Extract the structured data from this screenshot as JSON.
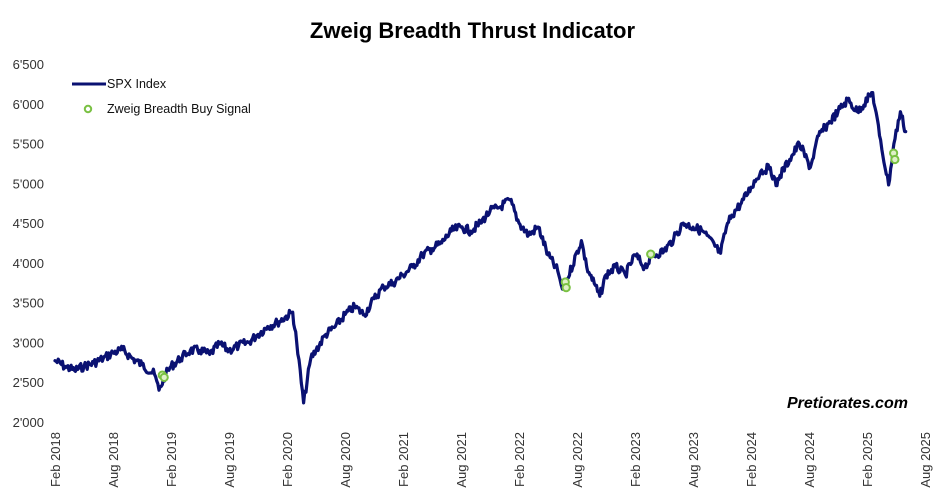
{
  "chart_data": {
    "type": "line",
    "title": "Zweig Breadth Thrust Indicator",
    "xlabel": "",
    "ylabel": "",
    "ylim": [
      2000,
      6500
    ],
    "yticks": [
      "2'000",
      "2'500",
      "3'000",
      "3'500",
      "4'000",
      "4'500",
      "5'000",
      "5'500",
      "6'000",
      "6'500"
    ],
    "ytick_values": [
      2000,
      2500,
      3000,
      3500,
      4000,
      4500,
      5000,
      5500,
      6000,
      6500
    ],
    "xlim": [
      "2018-02",
      "2025-08"
    ],
    "xticks": [
      "Feb 2018",
      "Aug 2018",
      "Feb 2019",
      "Aug 2019",
      "Feb 2020",
      "Aug 2020",
      "Feb 2021",
      "Aug 2021",
      "Feb 2022",
      "Aug 2022",
      "Feb 2023",
      "Aug 2023",
      "Feb 2024",
      "Aug 2024",
      "Feb 2025",
      "Aug 2025"
    ],
    "legend_position": "top-left",
    "grid": false,
    "series": [
      {
        "name": "SPX Index",
        "color": "#0a1172",
        "points": [
          [
            "2018-02-01",
            2770
          ],
          [
            "2018-03-01",
            2700
          ],
          [
            "2018-04-01",
            2650
          ],
          [
            "2018-05-01",
            2700
          ],
          [
            "2018-06-01",
            2740
          ],
          [
            "2018-07-01",
            2800
          ],
          [
            "2018-08-01",
            2870
          ],
          [
            "2018-09-01",
            2910
          ],
          [
            "2018-10-01",
            2800
          ],
          [
            "2018-11-01",
            2720
          ],
          [
            "2018-12-10",
            2600
          ],
          [
            "2018-12-24",
            2400
          ],
          [
            "2019-01-15",
            2600
          ],
          [
            "2019-02-01",
            2700
          ],
          [
            "2019-03-01",
            2800
          ],
          [
            "2019-04-01",
            2900
          ],
          [
            "2019-05-01",
            2900
          ],
          [
            "2019-06-01",
            2850
          ],
          [
            "2019-07-01",
            2980
          ],
          [
            "2019-08-01",
            2900
          ],
          [
            "2019-09-01",
            2960
          ],
          [
            "2019-10-01",
            3000
          ],
          [
            "2019-11-01",
            3100
          ],
          [
            "2019-12-01",
            3200
          ],
          [
            "2020-01-01",
            3250
          ],
          [
            "2020-02-19",
            3380
          ],
          [
            "2020-03-01",
            3000
          ],
          [
            "2020-03-23",
            2240
          ],
          [
            "2020-04-15",
            2800
          ],
          [
            "2020-05-01",
            2900
          ],
          [
            "2020-06-01",
            3100
          ],
          [
            "2020-07-01",
            3200
          ],
          [
            "2020-08-01",
            3350
          ],
          [
            "2020-09-01",
            3450
          ],
          [
            "2020-10-01",
            3350
          ],
          [
            "2020-11-01",
            3550
          ],
          [
            "2020-12-01",
            3700
          ],
          [
            "2021-01-01",
            3750
          ],
          [
            "2021-02-01",
            3850
          ],
          [
            "2021-03-01",
            3950
          ],
          [
            "2021-04-01",
            4100
          ],
          [
            "2021-05-01",
            4180
          ],
          [
            "2021-06-01",
            4250
          ],
          [
            "2021-07-01",
            4400
          ],
          [
            "2021-08-01",
            4450
          ],
          [
            "2021-09-01",
            4400
          ],
          [
            "2021-10-01",
            4500
          ],
          [
            "2021-11-01",
            4650
          ],
          [
            "2021-12-01",
            4700
          ],
          [
            "2022-01-03",
            4790
          ],
          [
            "2022-02-01",
            4500
          ],
          [
            "2022-03-01",
            4350
          ],
          [
            "2022-04-01",
            4450
          ],
          [
            "2022-05-01",
            4100
          ],
          [
            "2022-06-01",
            3900
          ],
          [
            "2022-06-16",
            3670
          ],
          [
            "2022-07-01",
            3800
          ],
          [
            "2022-08-15",
            4280
          ],
          [
            "2022-09-01",
            3950
          ],
          [
            "2022-10-12",
            3580
          ],
          [
            "2022-11-01",
            3850
          ],
          [
            "2022-12-01",
            3950
          ],
          [
            "2023-01-01",
            3850
          ],
          [
            "2023-02-01",
            4100
          ],
          [
            "2023-03-01",
            3950
          ],
          [
            "2023-04-01",
            4100
          ],
          [
            "2023-05-01",
            4150
          ],
          [
            "2023-06-01",
            4300
          ],
          [
            "2023-07-01",
            4500
          ],
          [
            "2023-08-01",
            4450
          ],
          [
            "2023-09-01",
            4400
          ],
          [
            "2023-10-27",
            4120
          ],
          [
            "2023-11-15",
            4450
          ],
          [
            "2023-12-01",
            4600
          ],
          [
            "2024-01-01",
            4750
          ],
          [
            "2024-02-01",
            4950
          ],
          [
            "2024-03-01",
            5150
          ],
          [
            "2024-04-01",
            5200
          ],
          [
            "2024-04-19",
            4970
          ],
          [
            "2024-05-01",
            5100
          ],
          [
            "2024-06-01",
            5300
          ],
          [
            "2024-07-01",
            5500
          ],
          [
            "2024-08-05",
            5200
          ],
          [
            "2024-09-01",
            5600
          ],
          [
            "2024-10-01",
            5750
          ],
          [
            "2024-11-01",
            5900
          ],
          [
            "2024-12-01",
            6050
          ],
          [
            "2025-01-01",
            5900
          ],
          [
            "2025-02-19",
            6140
          ],
          [
            "2025-03-10",
            5600
          ],
          [
            "2025-04-08",
            4980
          ],
          [
            "2025-04-25",
            5500
          ],
          [
            "2025-05-15",
            5900
          ],
          [
            "2025-06-01",
            5650
          ]
        ]
      },
      {
        "name": "Zweig Breadth Buy Signal",
        "color": "#7ac143",
        "points": [
          [
            "2019-01-04",
            2590
          ],
          [
            "2019-01-10",
            2560
          ],
          [
            "2022-06-25",
            3760
          ],
          [
            "2022-06-28",
            3690
          ],
          [
            "2023-03-20",
            4110
          ],
          [
            "2025-04-24",
            5380
          ],
          [
            "2025-04-28",
            5300
          ]
        ]
      }
    ]
  },
  "watermark": "Pretiorates.com"
}
